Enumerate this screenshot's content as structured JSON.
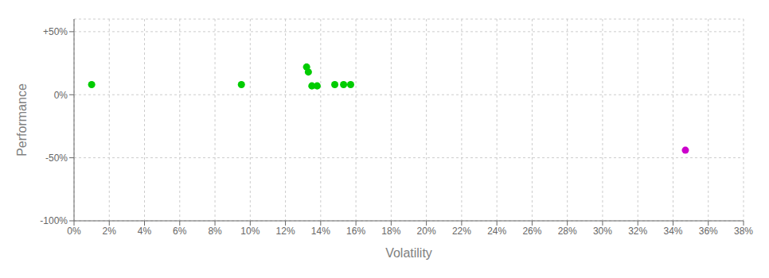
{
  "chart_data": {
    "type": "scatter",
    "x_label": "Volatility",
    "y_label": "Performance",
    "xlim": [
      0,
      0.38
    ],
    "ylim": [
      -1.0,
      0.6
    ],
    "xticks": [
      {
        "value": 0,
        "label": "0%"
      },
      {
        "value": 0.02,
        "label": "2%"
      },
      {
        "value": 0.04,
        "label": "4%"
      },
      {
        "value": 0.06,
        "label": "6%"
      },
      {
        "value": 0.08,
        "label": "8%"
      },
      {
        "value": 0.1,
        "label": "10%"
      },
      {
        "value": 0.12,
        "label": "12%"
      },
      {
        "value": 0.14,
        "label": "14%"
      },
      {
        "value": 0.16,
        "label": "16%"
      },
      {
        "value": 0.18,
        "label": "18%"
      },
      {
        "value": 0.2,
        "label": "20%"
      },
      {
        "value": 0.22,
        "label": "22%"
      },
      {
        "value": 0.24,
        "label": "24%"
      },
      {
        "value": 0.26,
        "label": "26%"
      },
      {
        "value": 0.28,
        "label": "28%"
      },
      {
        "value": 0.3,
        "label": "30%"
      },
      {
        "value": 0.32,
        "label": "32%"
      },
      {
        "value": 0.34,
        "label": "34%"
      },
      {
        "value": 0.36,
        "label": "36%"
      },
      {
        "value": 0.38,
        "label": "38%"
      }
    ],
    "yticks": [
      {
        "value": -1.0,
        "label": "-100%"
      },
      {
        "value": -0.5,
        "label": "-50%"
      },
      {
        "value": 0.0,
        "label": "0%"
      },
      {
        "value": 0.5,
        "label": "+50%"
      }
    ],
    "grid": true,
    "series": [
      {
        "color": "#00cc00",
        "x": [
          0.01,
          0.095,
          0.132,
          0.133,
          0.135,
          0.138,
          0.148,
          0.153,
          0.157
        ],
        "values": [
          0.08,
          0.08,
          0.22,
          0.18,
          0.07,
          0.07,
          0.08,
          0.08,
          0.08
        ]
      },
      {
        "color": "#cc00cc",
        "x": [
          0.347
        ],
        "values": [
          -0.44
        ]
      }
    ]
  }
}
